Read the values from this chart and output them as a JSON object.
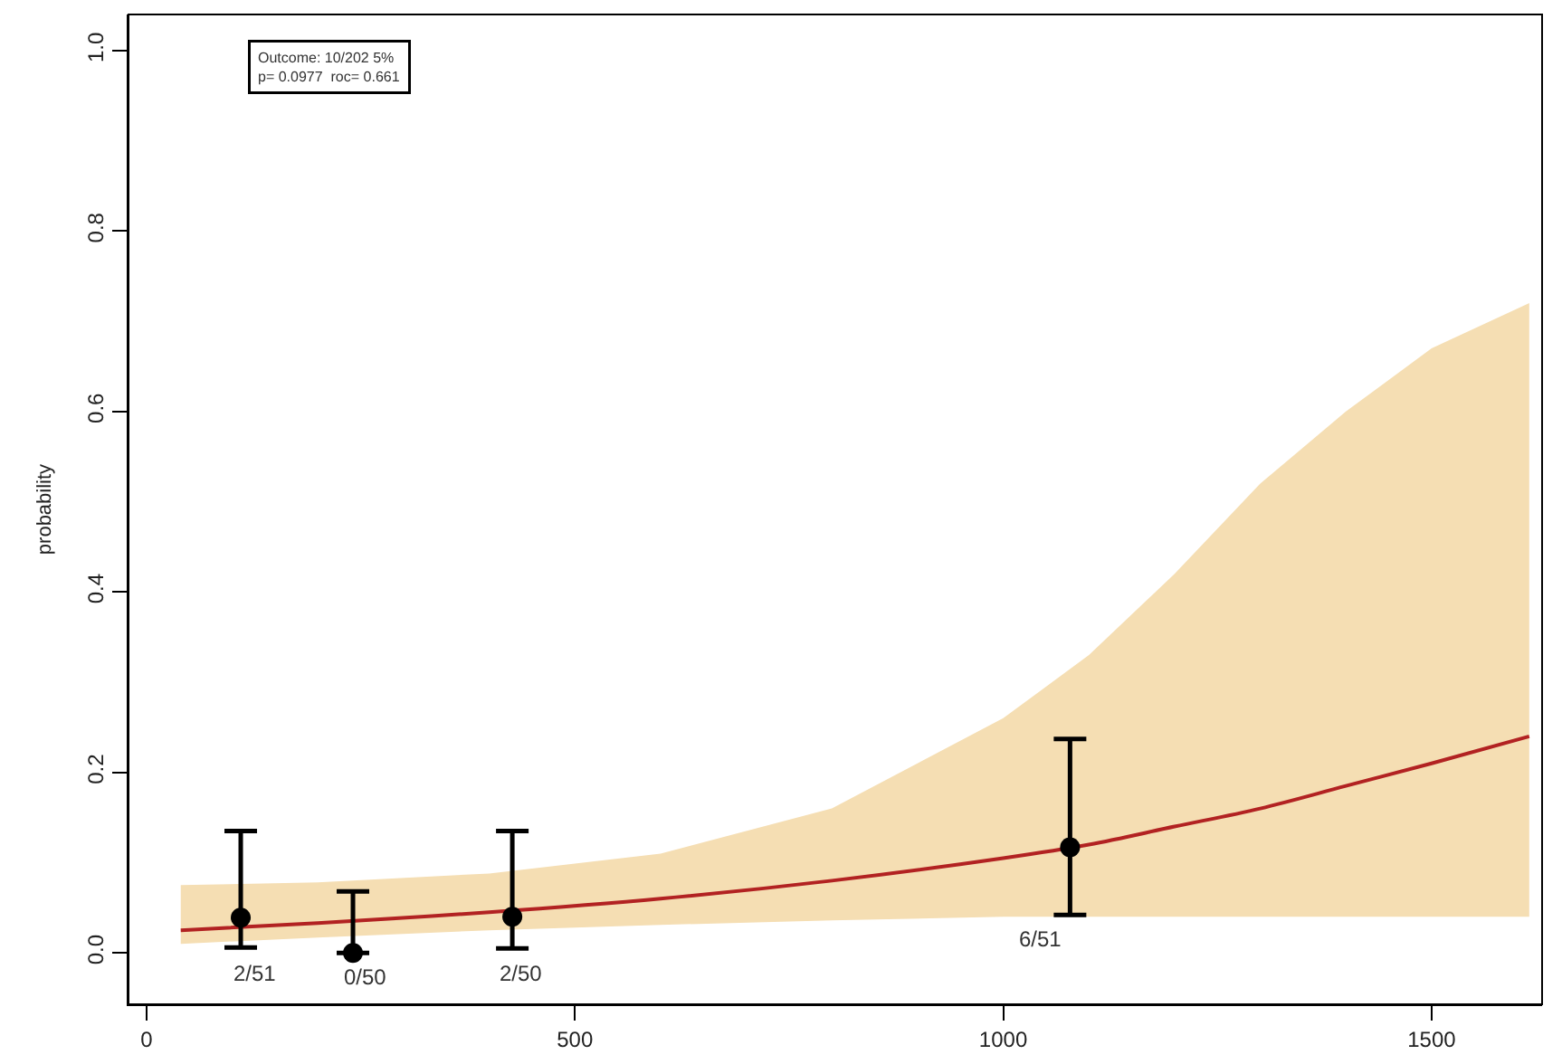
{
  "chart_data": {
    "type": "line",
    "ylabel": "probability",
    "xlim": [
      -21,
      1629
    ],
    "ylim": [
      -0.057,
      1.04
    ],
    "xticks": [
      0,
      500,
      1000,
      1500
    ],
    "yticks": [
      {
        "value": 0,
        "label": "0.0"
      },
      0.2,
      0.4,
      0.6,
      0.8,
      {
        "value": 1,
        "label": "1.0"
      }
    ],
    "series": [
      {
        "color": "#b22222",
        "x": [
          40,
          200,
          400,
          600,
          800,
          1000,
          1100,
          1200,
          1300,
          1400,
          1500,
          1614
        ],
        "values": [
          0.025,
          0.033,
          0.045,
          0.06,
          0.08,
          0.105,
          0.12,
          0.14,
          0.16,
          0.185,
          0.21,
          0.24
        ],
        "lower": [
          0.01,
          0.017,
          0.025,
          0.031,
          0.036,
          0.04,
          0.04,
          0.04,
          0.04,
          0.04,
          0.04,
          0.04
        ],
        "upper": [
          0.075,
          0.078,
          0.088,
          0.11,
          0.16,
          0.26,
          0.33,
          0.42,
          0.52,
          0.6,
          0.67,
          0.72
        ]
      },
      {
        "type": "scatter",
        "color": "#000000",
        "marker": "circle",
        "x": [
          110,
          241,
          427,
          1078
        ],
        "values": [
          0.039,
          0.0,
          0.04,
          0.117
        ],
        "errors": [
          [
            0.006,
            0.135
          ],
          [
            0.0,
            0.068
          ],
          [
            0.005,
            0.135
          ],
          [
            0.042,
            0.237
          ]
        ]
      }
    ],
    "annotations": [
      "Outcome: 10/202 5%",
      "p= 0.0977  roc= 0.661",
      "2/51",
      "0/50",
      "2/50",
      "6/51"
    ]
  }
}
